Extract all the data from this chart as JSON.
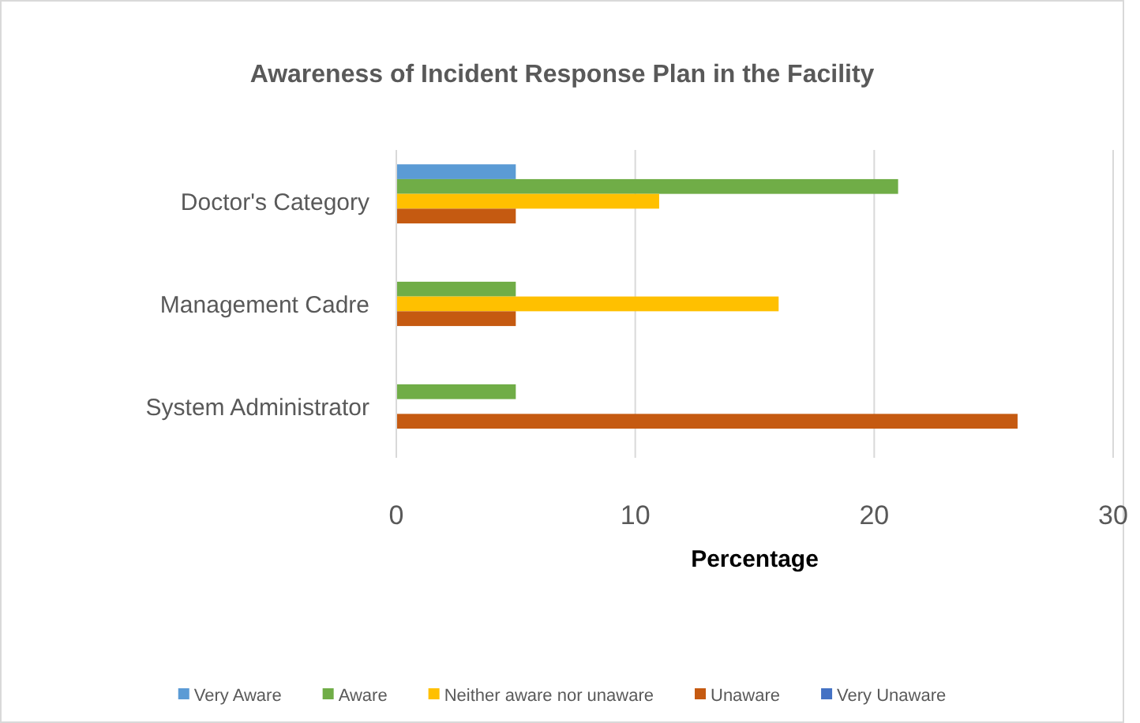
{
  "chart_data": {
    "type": "bar",
    "orientation": "horizontal",
    "title": "Awareness of Incident Response Plan in the Facility",
    "xlabel": "Percentage",
    "categories": [
      "Doctor's Category",
      "Management Cadre",
      "System Administrator"
    ],
    "series": [
      {
        "name": "Very Aware",
        "color": "#5b9bd5",
        "values": [
          5,
          null,
          null
        ]
      },
      {
        "name": "Aware",
        "color": "#70ad47",
        "values": [
          21,
          5,
          5
        ]
      },
      {
        "name": "Neither aware nor unaware",
        "color": "#ffc000",
        "values": [
          11,
          16,
          null
        ]
      },
      {
        "name": "Unaware",
        "color": "#c55a11",
        "values": [
          5,
          5,
          26
        ]
      },
      {
        "name": "Very Unaware",
        "color": "#4472c4",
        "values": [
          null,
          null,
          null
        ]
      }
    ],
    "xlim": [
      0,
      30
    ],
    "xticks": [
      0,
      10,
      20,
      30
    ],
    "grid": "x",
    "legend": "bottom"
  }
}
